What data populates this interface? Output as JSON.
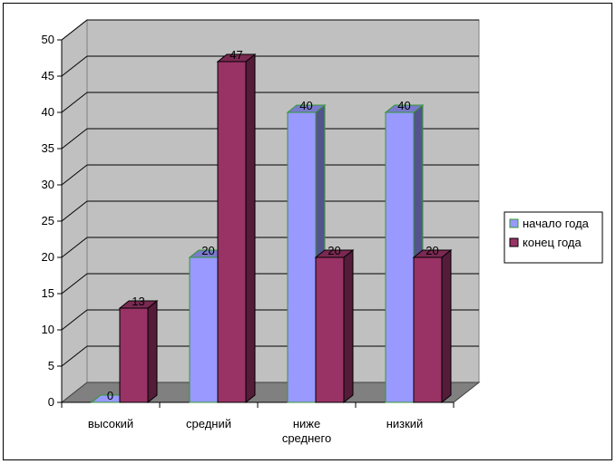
{
  "chart_data": {
    "type": "bar",
    "categories": [
      "высокий",
      "средний",
      "ниже\nсреднего",
      "низкий"
    ],
    "series": [
      {
        "name": "начало года",
        "values": [
          0,
          20,
          40,
          40
        ],
        "color": "#9999ff"
      },
      {
        "name": "конец года",
        "values": [
          13,
          47,
          20,
          20
        ],
        "color": "#993366"
      }
    ],
    "title": "",
    "xlabel": "",
    "ylabel": "",
    "ylim": [
      0,
      50
    ],
    "yticks": [
      0,
      5,
      10,
      15,
      20,
      25,
      30,
      35,
      40,
      45,
      50
    ],
    "grid": true,
    "legend": "right",
    "style": "3d-column",
    "plot_wall_color": "#c0c0c0",
    "data_labels": true
  }
}
